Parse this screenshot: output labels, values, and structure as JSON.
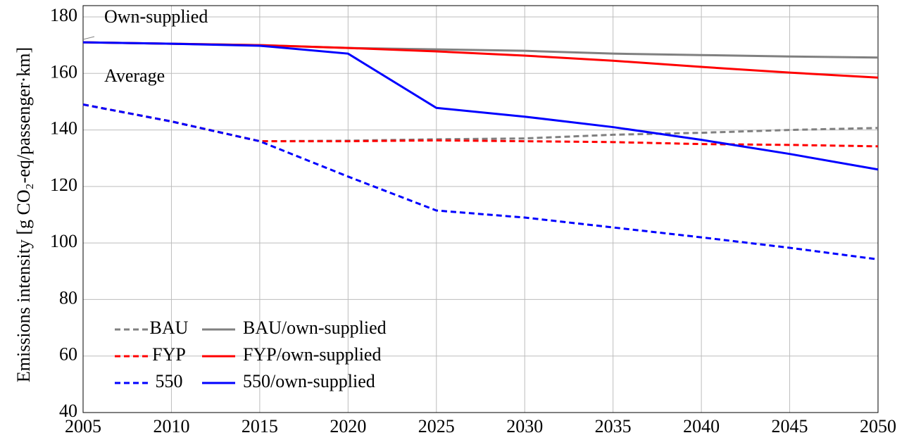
{
  "chart_data": {
    "type": "line",
    "y_label": "Emissions intensity [g CO₂-eq/passenger·km]",
    "annotations": [
      "Own-supplied",
      "Average"
    ],
    "x": [
      2005,
      2010,
      2015,
      2020,
      2025,
      2030,
      2035,
      2040,
      2045,
      2050
    ],
    "series": [
      {
        "name": "BAU",
        "color": "#808080",
        "dashed": true,
        "values": [
          149,
          143,
          136,
          136.2,
          136.7,
          137,
          138.3,
          139,
          140,
          140.7
        ]
      },
      {
        "name": "BAU/own-supplied",
        "color": "#808080",
        "dashed": false,
        "values": [
          171,
          170.5,
          170,
          169,
          168.5,
          168,
          167,
          166.5,
          166,
          165.6
        ]
      },
      {
        "name": "FYP",
        "color": "#ff0000",
        "dashed": true,
        "values": [
          149,
          143,
          136,
          136,
          136.3,
          136,
          135.7,
          135,
          134.7,
          134.2
        ]
      },
      {
        "name": "FYP/own-supplied",
        "color": "#ff0000",
        "dashed": false,
        "values": [
          171,
          170.5,
          170,
          169,
          167.8,
          166.3,
          164.5,
          162.3,
          160.3,
          158.5
        ]
      },
      {
        "name": "550",
        "color": "#0000ff",
        "dashed": true,
        "values": [
          149,
          143,
          136,
          123.5,
          111.5,
          109,
          105.5,
          102,
          98.3,
          94.2
        ]
      },
      {
        "name": "550/own-supplied",
        "color": "#0000ff",
        "dashed": false,
        "values": [
          171,
          170.5,
          169.8,
          167,
          147.8,
          144.7,
          141,
          136.5,
          131.5,
          126
        ]
      }
    ],
    "xlim": [
      2005,
      2050
    ],
    "xticks": [
      2005,
      2010,
      2015,
      2020,
      2025,
      2030,
      2035,
      2040,
      2045,
      2050
    ],
    "ylim": [
      40,
      180
    ],
    "yticks": [
      40,
      60,
      80,
      100,
      120,
      140,
      160,
      180
    ],
    "ylim_top": 184,
    "grid": true,
    "legend": "lower left"
  }
}
